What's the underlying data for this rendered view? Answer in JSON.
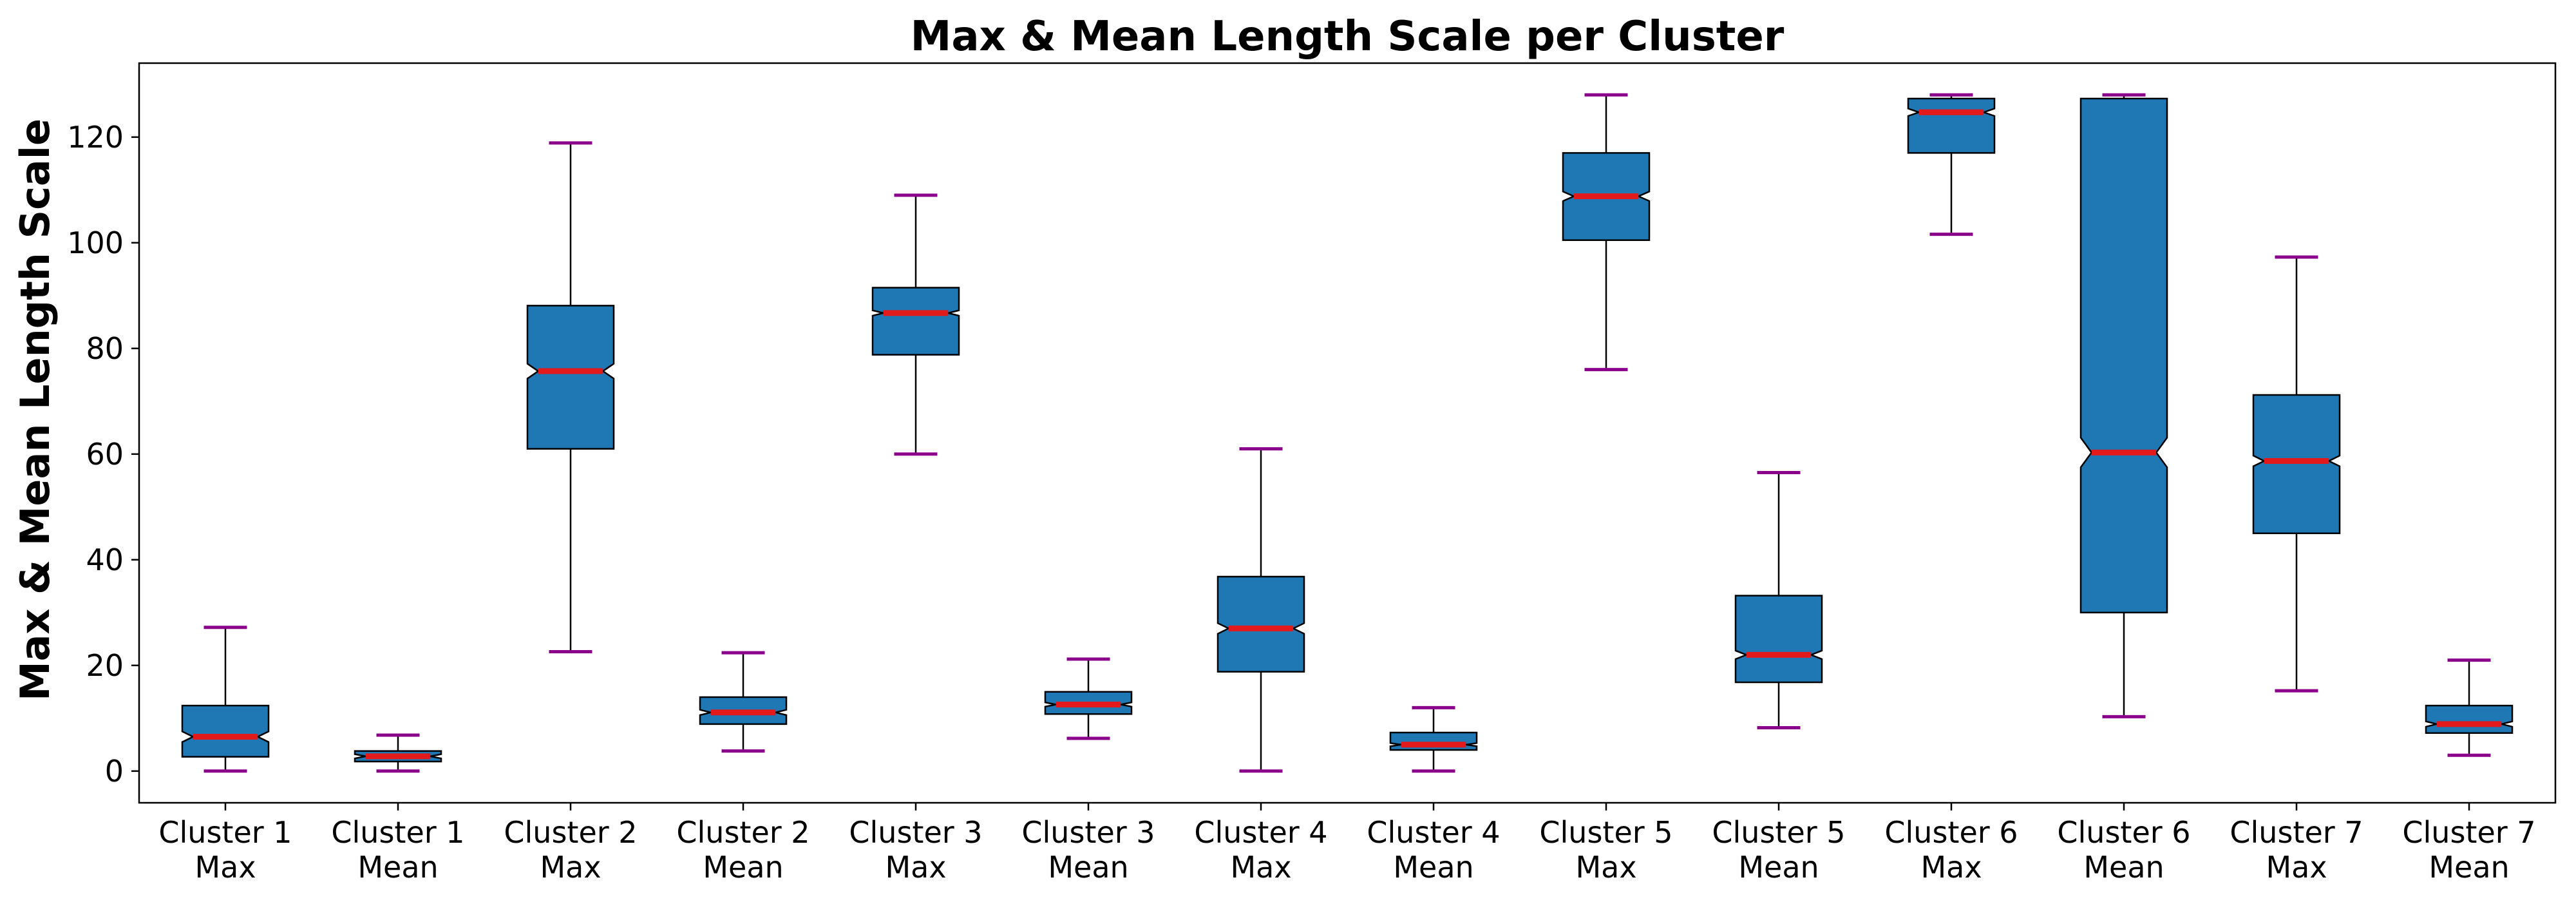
{
  "chart_data": {
    "type": "box",
    "title": "Max & Mean Length Scale per Cluster",
    "xlabel": "",
    "ylabel": "Max & Mean Length Scale",
    "ylim": [
      -6,
      134
    ],
    "yticks": [
      0,
      20,
      40,
      60,
      80,
      100,
      120
    ],
    "grid": false,
    "notched": true,
    "colors": {
      "box_fill": "#1f77b4",
      "box_edge": "#000000",
      "median": "#e31a1c",
      "cap": "#8b008b",
      "whisker": "#000000"
    },
    "categories": [
      [
        "Cluster 1",
        "Max"
      ],
      [
        "Cluster 1",
        "Mean"
      ],
      [
        "Cluster 2",
        "Max"
      ],
      [
        "Cluster 2",
        "Mean"
      ],
      [
        "Cluster 3",
        "Max"
      ],
      [
        "Cluster 3",
        "Mean"
      ],
      [
        "Cluster 4",
        "Max"
      ],
      [
        "Cluster 4",
        "Mean"
      ],
      [
        "Cluster 5",
        "Max"
      ],
      [
        "Cluster 5",
        "Mean"
      ],
      [
        "Cluster 6",
        "Max"
      ],
      [
        "Cluster 6",
        "Mean"
      ],
      [
        "Cluster 7",
        "Max"
      ],
      [
        "Cluster 7",
        "Mean"
      ]
    ],
    "boxes": [
      {
        "whislo": 0,
        "q1": 2.7,
        "med": 6.5,
        "q3": 12.4,
        "whishi": 27.2,
        "notch_lo": 5.5,
        "notch_hi": 7.5
      },
      {
        "whislo": 0,
        "q1": 1.8,
        "med": 2.8,
        "q3": 3.8,
        "whishi": 6.8,
        "notch_lo": 2.4,
        "notch_hi": 3.2
      },
      {
        "whislo": 22.6,
        "q1": 61.0,
        "med": 75.7,
        "q3": 88.1,
        "whishi": 118.9,
        "notch_lo": 74.3,
        "notch_hi": 77.1
      },
      {
        "whislo": 3.8,
        "q1": 8.9,
        "med": 11.1,
        "q3": 14.0,
        "whishi": 22.4,
        "notch_lo": 10.6,
        "notch_hi": 11.6
      },
      {
        "whislo": 60.0,
        "q1": 78.8,
        "med": 86.7,
        "q3": 91.5,
        "whishi": 109.0,
        "notch_lo": 86.2,
        "notch_hi": 87.2
      },
      {
        "whislo": 6.2,
        "q1": 10.8,
        "med": 12.6,
        "q3": 15.0,
        "whishi": 21.2,
        "notch_lo": 12.2,
        "notch_hi": 13.0
      },
      {
        "whislo": 0,
        "q1": 18.8,
        "med": 27.0,
        "q3": 36.8,
        "whishi": 61.0,
        "notch_lo": 26.0,
        "notch_hi": 28.0
      },
      {
        "whislo": 0,
        "q1": 4.0,
        "med": 5.0,
        "q3": 7.3,
        "whishi": 12.0,
        "notch_lo": 4.7,
        "notch_hi": 5.3
      },
      {
        "whislo": 76.0,
        "q1": 100.5,
        "med": 108.8,
        "q3": 117.0,
        "whishi": 128.0,
        "notch_lo": 107.9,
        "notch_hi": 109.7
      },
      {
        "whislo": 8.2,
        "q1": 16.8,
        "med": 22.0,
        "q3": 33.2,
        "whishi": 56.5,
        "notch_lo": 21.2,
        "notch_hi": 22.8
      },
      {
        "whislo": 101.6,
        "q1": 117.0,
        "med": 124.7,
        "q3": 127.3,
        "whishi": 128.0,
        "notch_lo": 124.0,
        "notch_hi": 125.4
      },
      {
        "whislo": 10.3,
        "q1": 30.0,
        "med": 60.3,
        "q3": 127.3,
        "whishi": 128.0,
        "notch_lo": 57.5,
        "notch_hi": 63.1
      },
      {
        "whislo": 15.2,
        "q1": 45.0,
        "med": 58.7,
        "q3": 71.2,
        "whishi": 97.3,
        "notch_lo": 57.7,
        "notch_hi": 59.7
      },
      {
        "whislo": 3.0,
        "q1": 7.2,
        "med": 8.9,
        "q3": 12.4,
        "whishi": 21.0,
        "notch_lo": 8.4,
        "notch_hi": 9.4
      }
    ]
  }
}
